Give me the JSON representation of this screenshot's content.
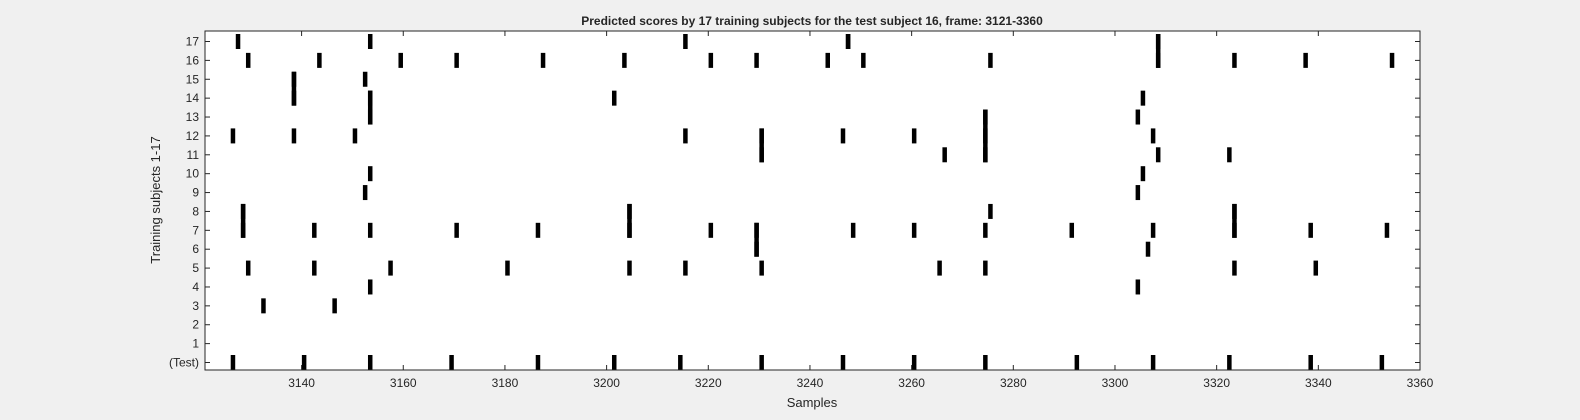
{
  "chart_data": {
    "type": "raster",
    "title": "Predicted scores by 17 training subjects for the test subject 16, frame: 3121-3360",
    "xlabel": "Samples",
    "ylabel": "Training subjects 1-17",
    "xlim": [
      3121,
      3360
    ],
    "xticks": [
      3140,
      3160,
      3180,
      3200,
      3220,
      3240,
      3260,
      3280,
      3300,
      3320,
      3340,
      3360
    ],
    "rows": [
      "(Test)",
      "1",
      "2",
      "3",
      "4",
      "5",
      "6",
      "7",
      "8",
      "9",
      "10",
      "11",
      "12",
      "13",
      "14",
      "15",
      "16",
      "17"
    ],
    "events": [
      {
        "row": "(Test)",
        "x": [
          3126.5,
          3140.5,
          3153.5,
          3169.5,
          3186.5,
          3201.5,
          3214.5,
          3230.5,
          3246.5,
          3260.5,
          3274.5,
          3292.5,
          3307.5,
          3322.5,
          3338.5,
          3352.5
        ]
      },
      {
        "row": "1",
        "x": []
      },
      {
        "row": "2",
        "x": []
      },
      {
        "row": "3",
        "x": [
          3132.5,
          3146.5
        ]
      },
      {
        "row": "4",
        "x": [
          3153.5,
          3304.5
        ]
      },
      {
        "row": "5",
        "x": [
          3129.5,
          3142.5,
          3157.5,
          3180.5,
          3204.5,
          3215.5,
          3230.5,
          3265.5,
          3274.5,
          3323.5,
          3339.5
        ]
      },
      {
        "row": "6",
        "x": [
          3229.5,
          3306.5
        ]
      },
      {
        "row": "7",
        "x": [
          3128.5,
          3142.5,
          3153.5,
          3170.5,
          3186.5,
          3204.5,
          3220.5,
          3229.5,
          3248.5,
          3260.5,
          3274.5,
          3291.5,
          3307.5,
          3323.5,
          3338.5,
          3353.5
        ]
      },
      {
        "row": "8",
        "x": [
          3128.5,
          3204.5,
          3275.5,
          3323.5
        ]
      },
      {
        "row": "9",
        "x": [
          3152.5,
          3304.5
        ]
      },
      {
        "row": "10",
        "x": [
          3153.5,
          3305.5
        ]
      },
      {
        "row": "11",
        "x": [
          3230.5,
          3266.5,
          3274.5,
          3308.5,
          3322.5
        ]
      },
      {
        "row": "12",
        "x": [
          3126.5,
          3138.5,
          3150.5,
          3215.5,
          3230.5,
          3246.5,
          3260.5,
          3274.5,
          3307.5
        ]
      },
      {
        "row": "13",
        "x": [
          3153.5,
          3274.5,
          3304.5
        ]
      },
      {
        "row": "14",
        "x": [
          3138.5,
          3153.5,
          3201.5,
          3305.5
        ]
      },
      {
        "row": "15",
        "x": [
          3138.5,
          3152.5
        ]
      },
      {
        "row": "16",
        "x": [
          3129.5,
          3143.5,
          3159.5,
          3170.5,
          3187.5,
          3203.5,
          3220.5,
          3229.5,
          3243.5,
          3250.5,
          3275.5,
          3308.5,
          3323.5,
          3337.5,
          3354.5
        ]
      },
      {
        "row": "17",
        "x": [
          3127.5,
          3153.5,
          3215.5,
          3247.5,
          3308.5
        ]
      }
    ],
    "long_marks": [
      {
        "x": 3308.5,
        "rows": [
          "16",
          "17"
        ]
      },
      {
        "x": 3247.5,
        "rows": [
          "17"
        ]
      },
      {
        "x": 3138.5,
        "rows": [
          "14",
          "15"
        ]
      },
      {
        "x": 3153.5,
        "rows": [
          "13",
          "14"
        ]
      },
      {
        "x": 3274.5,
        "rows": [
          "11",
          "12",
          "13"
        ]
      },
      {
        "x": 3230.5,
        "rows": [
          "11",
          "12"
        ]
      },
      {
        "x": 3229.5,
        "rows": [
          "6",
          "7"
        ]
      },
      {
        "x": 3204.5,
        "rows": [
          "7",
          "8"
        ]
      },
      {
        "x": 3128.5,
        "rows": [
          "7",
          "8"
        ]
      },
      {
        "x": 3323.5,
        "rows": [
          "7",
          "8"
        ]
      }
    ],
    "colors": {
      "background": "#f0f0f0",
      "axes": "#ffffff",
      "mark": "#000000",
      "axis": "#262626"
    }
  }
}
